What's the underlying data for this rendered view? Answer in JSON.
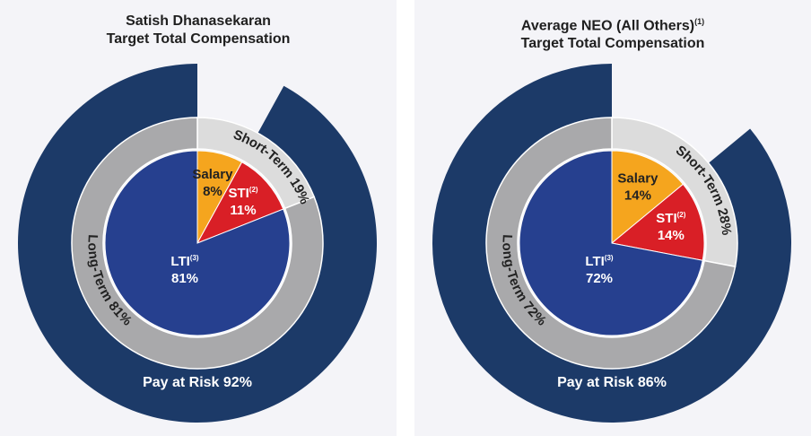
{
  "colors": {
    "outer_ring": "#1c3a68",
    "middle_short_term": "#dcdcdc",
    "middle_long_term": "#a9a9ab",
    "ring_separator": "#ffffff",
    "salary": "#f5a51e",
    "sti": "#d91f26",
    "lti": "#26408f",
    "label_dark": "#222222",
    "label_light": "#ffffff",
    "background": "#f4f4f8"
  },
  "chart_data": [
    {
      "type": "pie",
      "title": "Satish Dhanasekaran",
      "subtitle": "Target Total Compensation",
      "pay_at_risk": {
        "label": "Pay at Risk 92%",
        "value": 92
      },
      "middle_ring": [
        {
          "name": "Short-Term",
          "label": "Short-Term 19%",
          "value": 19
        },
        {
          "name": "Long-Term",
          "label": "Long-Term 81%",
          "value": 81
        }
      ],
      "slices": [
        {
          "name": "Salary",
          "label": "Salary",
          "value_label": "8%",
          "value": 8
        },
        {
          "name": "STI",
          "label": "STI",
          "sup": "(2)",
          "value_label": "11%",
          "value": 11
        },
        {
          "name": "LTI",
          "label": "LTI",
          "sup": "(3)",
          "value_label": "81%",
          "value": 81
        }
      ]
    },
    {
      "type": "pie",
      "title": "Average NEO (All Others)",
      "title_sup": "(1)",
      "subtitle": "Target Total Compensation",
      "pay_at_risk": {
        "label": "Pay at Risk 86%",
        "value": 86
      },
      "middle_ring": [
        {
          "name": "Short-Term",
          "label": "Short-Term 28%",
          "value": 28
        },
        {
          "name": "Long-Term",
          "label": "Long-Term 72%",
          "value": 72
        }
      ],
      "slices": [
        {
          "name": "Salary",
          "label": "Salary",
          "value_label": "14%",
          "value": 14
        },
        {
          "name": "STI",
          "label": "STI",
          "sup": "(2)",
          "value_label": "14%",
          "value": 14
        },
        {
          "name": "LTI",
          "label": "LTI",
          "sup": "(3)",
          "value_label": "72%",
          "value": 72
        }
      ]
    }
  ]
}
